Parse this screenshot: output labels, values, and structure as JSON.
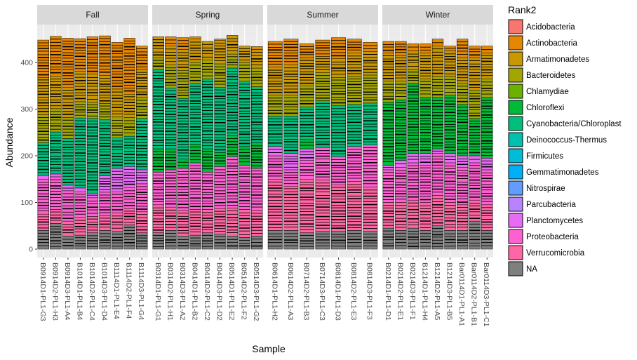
{
  "chart_data": {
    "type": "bar",
    "stacked": true,
    "xlabel": "Sample",
    "ylabel": "Abundance",
    "ylim": [
      0,
      470
    ],
    "yticks": [
      0,
      100,
      200,
      300,
      400
    ],
    "grid": true,
    "legend_position": "right",
    "legend": {
      "title": "Rank2",
      "entries": [
        {
          "label": "Acidobacteria",
          "color": "#F8766D"
        },
        {
          "label": "Actinobacteria",
          "color": "#E58700"
        },
        {
          "label": "Armatimonadetes",
          "color": "#C99800"
        },
        {
          "label": "Bacteroidetes",
          "color": "#A3A500"
        },
        {
          "label": "Chlamydiae",
          "color": "#6BB100"
        },
        {
          "label": "Chloroflexi",
          "color": "#00BA38"
        },
        {
          "label": "Cyanobacteria/Chloroplast",
          "color": "#00BF7D"
        },
        {
          "label": "Deinococcus-Thermus",
          "color": "#00C0AF"
        },
        {
          "label": "Firmicutes",
          "color": "#00BCD8"
        },
        {
          "label": "Gemmatimonadetes",
          "color": "#00B0F6"
        },
        {
          "label": "Nitrospirae",
          "color": "#619CFF"
        },
        {
          "label": "Parcubacteria",
          "color": "#B983FF"
        },
        {
          "label": "Planctomycetes",
          "color": "#E76BF3"
        },
        {
          "label": "Proteobacteria",
          "color": "#FD61D1"
        },
        {
          "label": "Verrucomicrobia",
          "color": "#FF67A4"
        },
        {
          "label": "NA",
          "color": "#7F7F7F"
        }
      ]
    },
    "facets": [
      {
        "label": "Fall",
        "samples": [
          "B0914D1-PL1-G3",
          "B0914D2-PL1-H3",
          "B0914D3-PL1-A4",
          "B1014D1-PL1-B4",
          "B1014D2-PL1-C4",
          "B1014D3-PL1-D4",
          "B1114D1-PL1-E4",
          "B1114D2-PL1-F4",
          "B1114D3-PL1-G4"
        ],
        "values": {
          "NA": [
            40,
            55,
            28,
            30,
            35,
            40,
            38,
            52,
            35
          ],
          "Verrucomicrobia": [
            35,
            30,
            32,
            38,
            35,
            32,
            40,
            35,
            45
          ],
          "Proteobacteria": [
            75,
            70,
            65,
            55,
            40,
            50,
            45,
            45,
            60
          ],
          "Planctomycetes": [
            8,
            6,
            12,
            8,
            10,
            35,
            50,
            45,
            30
          ],
          "Chloroflexi": [
            0,
            0,
            0,
            0,
            0,
            0,
            0,
            0,
            0
          ],
          "Cyanobacteria/Chloroplast": [
            70,
            90,
            100,
            150,
            160,
            120,
            65,
            65,
            110
          ],
          "Bacteroidetes": [
            60,
            50,
            45,
            35,
            35,
            35,
            45,
            40,
            45
          ],
          "Armatimonadetes": [
            80,
            70,
            65,
            65,
            60,
            60,
            60,
            50,
            60
          ],
          "Actinobacteria": [
            80,
            85,
            105,
            70,
            80,
            85,
            100,
            120,
            50
          ]
        }
      },
      {
        "label": "Spring",
        "samples": [
          "B0314D1-PL1-G1",
          "B0314D2-PL1-H1",
          "B0314D3-PL1-A2",
          "B0414D1-PL1-B2",
          "B0414D2-PL1-C2",
          "B0414D3-PL1-D2",
          "B0514D1-PL1-E2",
          "B0514D2-PL1-F2",
          "B0514D3-PL1-G2"
        ],
        "values": {
          "NA": [
            35,
            40,
            28,
            30,
            35,
            32,
            28,
            25,
            28
          ],
          "Verrucomicrobia": [
            60,
            50,
            55,
            55,
            50,
            55,
            60,
            60,
            55
          ],
          "Proteobacteria": [
            70,
            80,
            90,
            100,
            80,
            90,
            110,
            95,
            90
          ],
          "Planctomycetes": [
            0,
            0,
            0,
            0,
            0,
            0,
            0,
            0,
            0
          ],
          "Chloroflexi": [
            50,
            45,
            20,
            40,
            50,
            30,
            45,
            40,
            55
          ],
          "Cyanobacteria/Chloroplast": [
            170,
            130,
            130,
            130,
            150,
            140,
            145,
            140,
            120
          ],
          "Bacteroidetes": [
            25,
            50,
            60,
            45,
            40,
            50,
            30,
            40,
            40
          ],
          "Armatimonadetes": [
            45,
            40,
            45,
            50,
            40,
            50,
            40,
            35,
            40
          ],
          "Actinobacteria": [
            0,
            20,
            25,
            5,
            0,
            3,
            0,
            0,
            6
          ]
        }
      },
      {
        "label": "Summer",
        "samples": [
          "B0614D1-PL1-H2",
          "B0614D2-PL1-A3",
          "B0714D2-PL1-B3",
          "B0714D3-PL1-C3",
          "B0814D1-PL1-D3",
          "B0814D2-PL1-E3",
          "B0814D3-PL1-F3"
        ],
        "values": {
          "NA": [
            40,
            40,
            35,
            38,
            38,
            40,
            38
          ],
          "Verrucomicrobia": [
            110,
            95,
            115,
            110,
            100,
            105,
            95
          ],
          "Proteobacteria": [
            50,
            35,
            40,
            70,
            60,
            75,
            90
          ],
          "Planctomycetes": [
            20,
            35,
            25,
            0,
            0,
            0,
            0
          ],
          "Chloroflexi": [
            0,
            0,
            20,
            0,
            0,
            0,
            0
          ],
          "Cyanobacteria/Chloroplast": [
            65,
            80,
            70,
            100,
            110,
            90,
            90
          ],
          "Bacteroidetes": [
            45,
            45,
            45,
            60,
            60,
            60,
            60
          ],
          "Armatimonadetes": [
            60,
            65,
            60,
            35,
            40,
            50,
            50
          ],
          "Actinobacteria": [
            55,
            55,
            30,
            35,
            45,
            30,
            20
          ]
        }
      },
      {
        "label": "Winter",
        "samples": [
          "B0214D1-PL1-D1",
          "B0214D2-PL1-E1",
          "B0214D3-PL1-F1",
          "B1214D1-PL1-H4",
          "B1214D2-PL1-A5",
          "B1214D3-PL1-B5",
          "Bar0114D1-PL1-A1",
          "Bar0114D2-PL1-B1",
          "Bar0114D3-PL1-C1"
        ],
        "values": {
          "NA": [
            45,
            40,
            45,
            40,
            50,
            40,
            40,
            60,
            40
          ],
          "Verrucomicrobia": [
            55,
            60,
            60,
            60,
            65,
            60,
            55,
            45,
            55
          ],
          "Proteobacteria": [
            70,
            75,
            80,
            80,
            90,
            85,
            80,
            80,
            75
          ],
          "Planctomycetes": [
            10,
            15,
            20,
            25,
            10,
            20,
            25,
            15,
            25
          ],
          "Chloroflexi": [
            135,
            130,
            150,
            120,
            110,
            125,
            110,
            80,
            130
          ],
          "Cyanobacteria/Chloroplast": [
            0,
            0,
            0,
            0,
            0,
            0,
            0,
            0,
            0
          ],
          "Bacteroidetes": [
            45,
            40,
            30,
            40,
            45,
            40,
            45,
            60,
            40
          ],
          "Armatimonadetes": [
            60,
            55,
            40,
            55,
            65,
            55,
            55,
            70,
            55
          ],
          "Actinobacteria": [
            25,
            30,
            15,
            20,
            15,
            10,
            40,
            25,
            15
          ]
        }
      }
    ]
  }
}
